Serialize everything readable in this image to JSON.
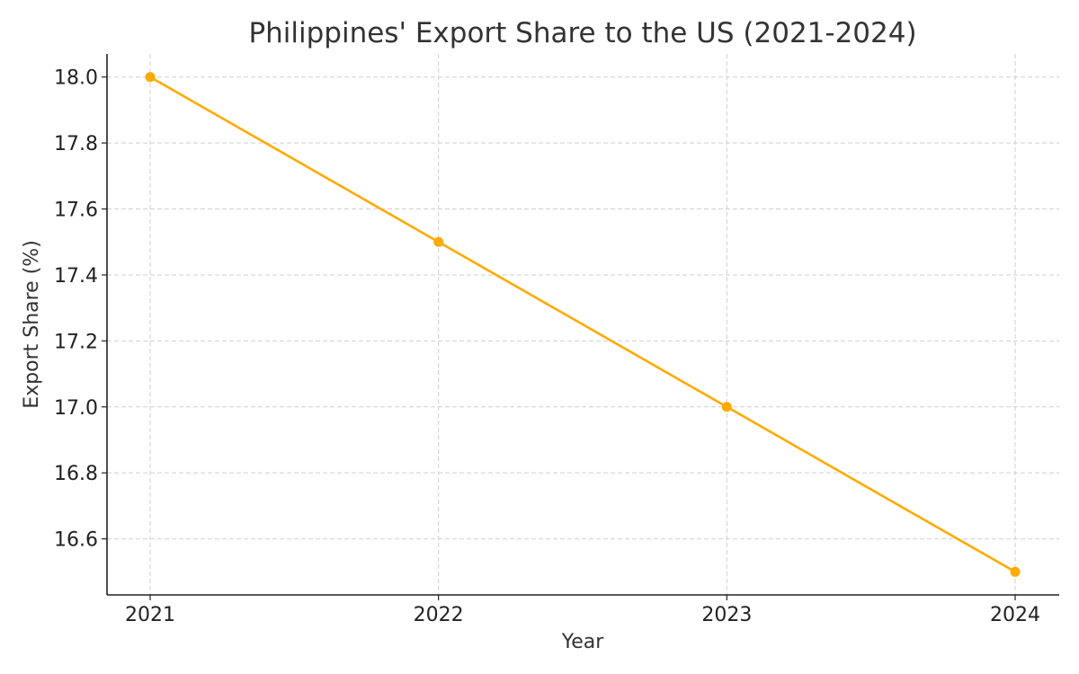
{
  "chart_data": {
    "type": "line",
    "title": "Philippines' Export Share to the US (2021-2024)",
    "xlabel": "Year",
    "ylabel": "Export Share (%)",
    "categories": [
      "2021",
      "2022",
      "2023",
      "2024"
    ],
    "series": [
      {
        "values": [
          18.0,
          17.5,
          17.0,
          16.5
        ],
        "color": "#FFAA00"
      }
    ],
    "ylim": [
      16.43,
      18.07
    ],
    "yticks": [
      "16.6",
      "16.8",
      "17.0",
      "17.2",
      "17.4",
      "17.6",
      "17.8",
      "18.0"
    ],
    "grid": true,
    "legend": "none"
  }
}
